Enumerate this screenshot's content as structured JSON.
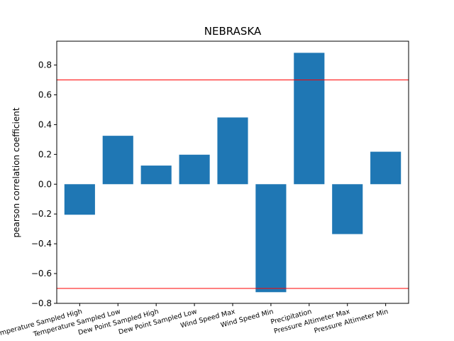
{
  "chart_data": {
    "type": "bar",
    "title": "NEBRASKA",
    "xlabel": "",
    "ylabel": "pearson correlation coefficient",
    "categories": [
      "Temperature Sampled High",
      "Temperature Sampled Low",
      "Dew Point Sampled High",
      "Dew Point Sampled Low",
      "Wind Speed Max",
      "Wind Speed Min",
      "Precipitation",
      "Pressure Altimeter Max",
      "Pressure Altimeter Min"
    ],
    "values": [
      -0.205,
      0.325,
      0.125,
      0.198,
      0.448,
      -0.725,
      0.882,
      -0.335,
      0.218
    ],
    "ylim": [
      -0.8,
      0.96
    ],
    "yticks": [
      "−0.8",
      "−0.6",
      "−0.4",
      "−0.2",
      "0.0",
      "0.2",
      "0.4",
      "0.6",
      "0.8"
    ],
    "ytick_values": [
      -0.8,
      -0.6,
      -0.4,
      -0.2,
      0.0,
      0.2,
      0.4,
      0.6,
      0.8
    ],
    "reference_lines": [
      0.7,
      -0.7
    ],
    "bar_color": "#1f77b4",
    "reference_color": "#ff0000",
    "grid": false,
    "legend": "none"
  }
}
